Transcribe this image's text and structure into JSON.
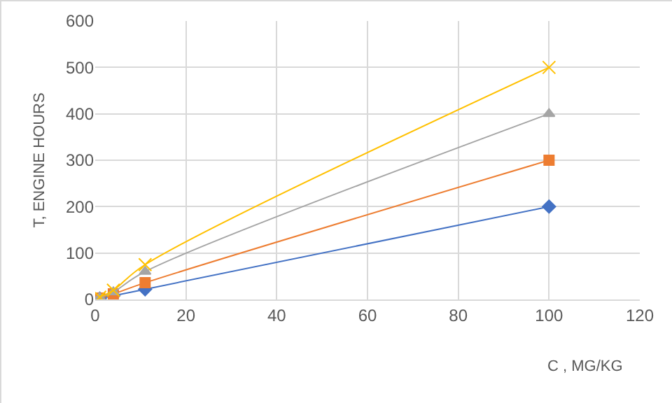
{
  "chart_data": {
    "type": "line",
    "xlabel": "C , MG/KG",
    "ylabel": "T, ENGINE HOURS",
    "xlim": [
      0,
      120
    ],
    "xticks": [
      0,
      20,
      40,
      60,
      80,
      100,
      120
    ],
    "ylim": [
      0,
      600
    ],
    "yticks": [
      0,
      100,
      200,
      300,
      400,
      500,
      600
    ],
    "grid": true,
    "x": [
      1,
      4,
      11,
      100
    ],
    "series": [
      {
        "color": "#4472c4",
        "marker": "diamond",
        "values": [
          2,
          8,
          22,
          200
        ]
      },
      {
        "color": "#ed7d31",
        "marker": "square",
        "values": [
          3,
          12,
          36,
          300
        ]
      },
      {
        "color": "#a5a5a5",
        "marker": "triangle",
        "values": [
          4,
          16,
          60,
          400
        ]
      },
      {
        "color": "#ffc000",
        "marker": "cross",
        "values": [
          5,
          20,
          75,
          500
        ]
      }
    ]
  }
}
